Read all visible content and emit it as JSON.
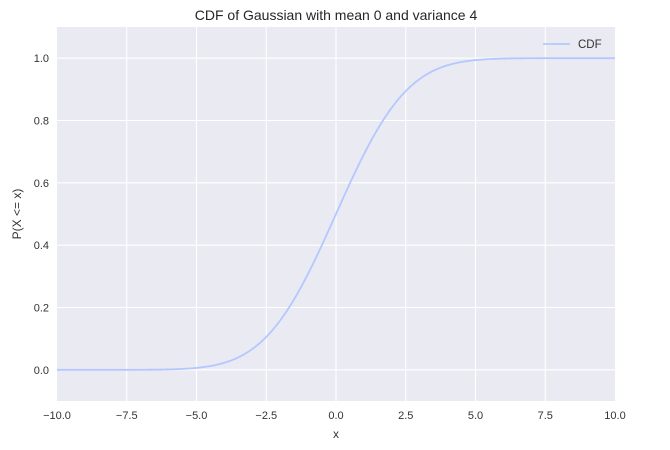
{
  "chart_data": {
    "type": "line",
    "title": "CDF of Gaussian with mean 0 and variance 4",
    "xlabel": "x",
    "ylabel": "P(X <= x)",
    "xlim": [
      -10,
      10
    ],
    "ylim": [
      -0.1,
      1.1
    ],
    "x_ticks": [
      -10,
      -7.5,
      -5,
      -2.5,
      0,
      2.5,
      5,
      7.5,
      10
    ],
    "x_tick_labels": [
      "−10.0",
      "−7.5",
      "−5.0",
      "−2.5",
      "0.0",
      "2.5",
      "5.0",
      "7.5",
      "10.0"
    ],
    "y_ticks": [
      0,
      0.2,
      0.4,
      0.6,
      0.8,
      1.0
    ],
    "y_tick_labels": [
      "0.0",
      "0.2",
      "0.4",
      "0.6",
      "0.8",
      "1.0"
    ],
    "grid": true,
    "legend_position": "top-right",
    "series": [
      {
        "name": "CDF",
        "color": "#b4c7ff",
        "x": [
          -10,
          -4.0,
          -3.5,
          -3.0,
          -2.5,
          -2.0,
          -1.5,
          -1.0,
          -0.5,
          0.0,
          0.5,
          1.0,
          1.5,
          2.0,
          2.5,
          3.0,
          3.5,
          4.0,
          10
        ],
        "y": [
          0.0,
          0.0228,
          0.0401,
          0.0668,
          0.1056,
          0.1587,
          0.2266,
          0.3085,
          0.4013,
          0.5,
          0.5987,
          0.6915,
          0.7734,
          0.8413,
          0.8944,
          0.9332,
          0.9599,
          0.9772,
          1.0
        ]
      }
    ],
    "background_color": "#eaeaf2",
    "grid_color": "#ffffff"
  }
}
